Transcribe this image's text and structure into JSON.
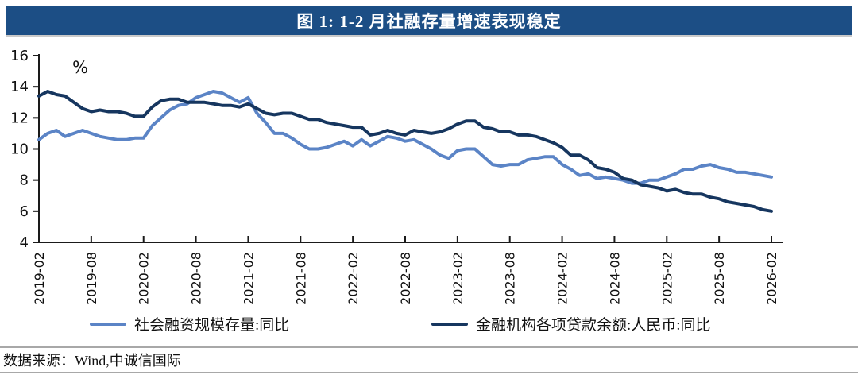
{
  "title": {
    "text": "图 1: 1-2 月社融存量增速表现稳定"
  },
  "colors": {
    "title_bar_bg": "#1c4e85",
    "title_text": "#ffffff",
    "series_light_blue": "#5b84c6",
    "series_dark_navy": "#16365f",
    "axis": "#1a1a1a",
    "divider_gray": "#a8a8a8"
  },
  "legend": {
    "item1": "社会融资规模存量:同比",
    "item2": "金融机构各项贷款余额:人民币:同比"
  },
  "source": {
    "text": "数据来源：Wind,中诚信国际"
  },
  "chart_data": {
    "type": "line",
    "title": "图 1: 1-2 月社融存量增速表现稳定",
    "unit_label": "%",
    "ylim": [
      4,
      16
    ],
    "y_ticks": [
      4,
      6,
      8,
      10,
      12,
      14,
      16
    ],
    "grid": false,
    "legend_position": "bottom",
    "x_tick_labels": [
      "2019-02",
      "2019-08",
      "2020-02",
      "2020-08",
      "2021-02",
      "2021-08",
      "2022-02",
      "2022-08",
      "2023-02",
      "2023-08",
      "2024-02",
      "2024-08",
      "2025-02",
      "2025-08",
      "2026-02"
    ],
    "x_tick_every": 6,
    "months": [
      "2019-02",
      "2019-03",
      "2019-04",
      "2019-05",
      "2019-06",
      "2019-07",
      "2019-08",
      "2019-09",
      "2019-10",
      "2019-11",
      "2019-12",
      "2020-01",
      "2020-02",
      "2020-03",
      "2020-04",
      "2020-05",
      "2020-06",
      "2020-07",
      "2020-08",
      "2020-09",
      "2020-10",
      "2020-11",
      "2020-12",
      "2021-01",
      "2021-02",
      "2021-03",
      "2021-04",
      "2021-05",
      "2021-06",
      "2021-07",
      "2021-08",
      "2021-09",
      "2021-10",
      "2021-11",
      "2021-12",
      "2022-01",
      "2022-02",
      "2022-03",
      "2022-04",
      "2022-05",
      "2022-06",
      "2022-07",
      "2022-08",
      "2022-09",
      "2022-10",
      "2022-11",
      "2022-12",
      "2023-01",
      "2023-02",
      "2023-03",
      "2023-04",
      "2023-05",
      "2023-06",
      "2023-07",
      "2023-08",
      "2023-09",
      "2023-10",
      "2023-11",
      "2023-12",
      "2024-01",
      "2024-02",
      "2024-03",
      "2024-04",
      "2024-05",
      "2024-06",
      "2024-07",
      "2024-08",
      "2024-09",
      "2024-10",
      "2024-11",
      "2024-12",
      "2025-01",
      "2025-02",
      "2025-03",
      "2025-04",
      "2025-05",
      "2025-06",
      "2025-07",
      "2025-08",
      "2025-09",
      "2025-10",
      "2025-11",
      "2025-12",
      "2026-01",
      "2026-02"
    ],
    "series": [
      {
        "name": "社会融资规模存量:同比",
        "color": "#5b84c6",
        "values": [
          10.6,
          11.0,
          11.2,
          10.8,
          11.0,
          11.2,
          11.0,
          10.8,
          10.7,
          10.6,
          10.6,
          10.7,
          10.7,
          11.5,
          12.0,
          12.5,
          12.8,
          12.9,
          13.3,
          13.5,
          13.7,
          13.6,
          13.3,
          13.0,
          13.3,
          12.3,
          11.7,
          11.0,
          11.0,
          10.7,
          10.3,
          10.0,
          10.0,
          10.1,
          10.3,
          10.5,
          10.2,
          10.6,
          10.2,
          10.5,
          10.8,
          10.7,
          10.5,
          10.6,
          10.3,
          10.0,
          9.6,
          9.4,
          9.9,
          10.0,
          10.0,
          9.5,
          9.0,
          8.9,
          9.0,
          9.0,
          9.3,
          9.4,
          9.5,
          9.5,
          9.0,
          8.7,
          8.3,
          8.4,
          8.1,
          8.2,
          8.1,
          8.0,
          7.8,
          7.8,
          8.0,
          8.0,
          8.2,
          8.4,
          8.7,
          8.7,
          8.9,
          9.0,
          8.8,
          8.7,
          8.5,
          8.5,
          8.4,
          8.3,
          8.2
        ]
      },
      {
        "name": "金融机构各项贷款余额:人民币:同比",
        "color": "#16365f",
        "values": [
          13.4,
          13.7,
          13.5,
          13.4,
          13.0,
          12.6,
          12.4,
          12.5,
          12.4,
          12.4,
          12.3,
          12.1,
          12.1,
          12.7,
          13.1,
          13.2,
          13.2,
          13.0,
          13.0,
          13.0,
          12.9,
          12.8,
          12.8,
          12.7,
          12.9,
          12.6,
          12.3,
          12.2,
          12.3,
          12.3,
          12.1,
          11.9,
          11.9,
          11.7,
          11.6,
          11.5,
          11.4,
          11.4,
          10.9,
          11.0,
          11.2,
          11.0,
          10.9,
          11.2,
          11.1,
          11.0,
          11.1,
          11.3,
          11.6,
          11.8,
          11.8,
          11.4,
          11.3,
          11.1,
          11.1,
          10.9,
          10.9,
          10.8,
          10.6,
          10.4,
          10.1,
          9.6,
          9.6,
          9.3,
          8.8,
          8.7,
          8.5,
          8.1,
          8.0,
          7.7,
          7.6,
          7.5,
          7.3,
          7.4,
          7.2,
          7.1,
          7.1,
          6.9,
          6.8,
          6.6,
          6.5,
          6.4,
          6.3,
          6.1,
          6.0
        ]
      }
    ]
  }
}
